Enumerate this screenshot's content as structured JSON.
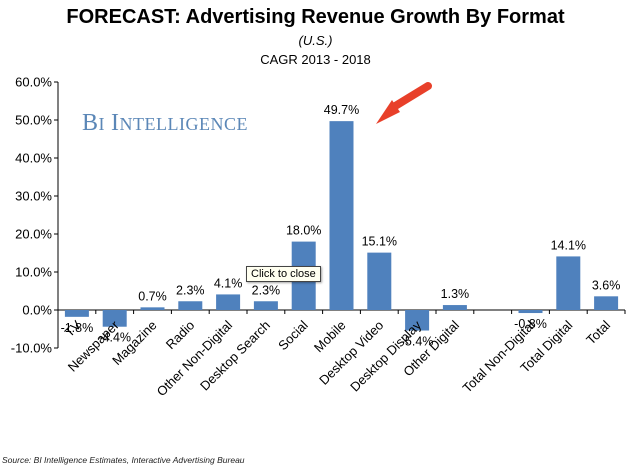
{
  "chart_data": {
    "type": "bar",
    "title": "FORECAST: Advertising Revenue Growth By Format",
    "subtitle": "(U.S.)",
    "subtitle2": "CAGR 2013 - 2018",
    "watermark": "BI INTELLIGENCE",
    "source": "Source: BI Intelligence Estimates, Interactive Advertising Bureau",
    "tooltip": "Click to close",
    "ylim": [
      -10,
      60
    ],
    "yticks": [
      -10,
      0,
      10,
      20,
      30,
      40,
      50,
      60
    ],
    "ytick_labels": [
      "-10.0%",
      "0.0%",
      "10.0%",
      "20.0%",
      "30.0%",
      "40.0%",
      "50.0%",
      "60.0%"
    ],
    "categories": [
      "TV",
      "Newspaper",
      "Magazine",
      "Radio",
      "Other Non-Digital",
      "Desktop Search",
      "Social",
      "Mobile",
      "Desktop Video",
      "Desktop Display",
      "Other Digital",
      "Total Non-Digital",
      "Total Digital",
      "Total"
    ],
    "category_slots": [
      0,
      1,
      2,
      3,
      4,
      5,
      6,
      7,
      8,
      9,
      10,
      12,
      13,
      14
    ],
    "values": [
      -1.8,
      -4.4,
      0.7,
      2.3,
      4.1,
      2.3,
      18.0,
      49.7,
      15.1,
      -5.4,
      1.3,
      -0.8,
      14.1,
      3.6
    ],
    "data_labels": [
      "-1.8%",
      "-4.4%",
      "0.7%",
      "2.3%",
      "4.1%",
      "2.3%",
      "18.0%",
      "49.7%",
      "15.1%",
      "-5.4%",
      "1.3%",
      "-0.8%",
      "14.1%",
      "3.6%"
    ],
    "highlight_category": "Mobile",
    "bar_color": "#4f81bd",
    "arrow_color": "#e8402a",
    "grid": false
  }
}
